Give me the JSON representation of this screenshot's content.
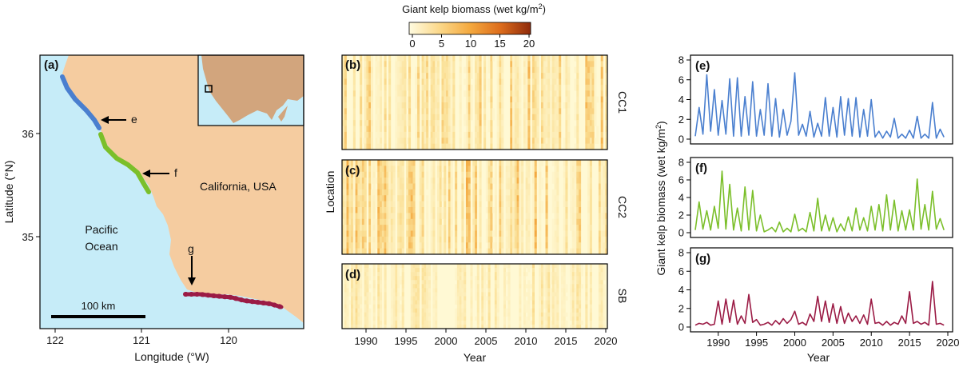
{
  "colors": {
    "ocean": "#c6ecf8",
    "land": "#f5ccA0",
    "inset_land": "#d2a57d",
    "coast_e": "#4a7fcf",
    "coast_f": "#7bbf2a",
    "coast_g": "#9b1b45",
    "heat_low": "#fff7d0",
    "heat_mid": "#f3a03a",
    "heat_high": "#8f2a0a"
  },
  "map": {
    "panel_label": "(a)",
    "xlabel": "Longitude (°W)",
    "ylabel": "Latitude (°N)",
    "xticks": [
      "122",
      "121",
      "120"
    ],
    "yticks": [
      "36",
      "35"
    ],
    "ocean_label": [
      "Pacific",
      "Ocean"
    ],
    "land_label": "California, USA",
    "scale_label": "100 km",
    "arrows": [
      "e",
      "f",
      "g"
    ]
  },
  "heatmap": {
    "colorbar_title": "Giant kelp biomass (wet kg/m²)",
    "colorbar_title_main": "Giant kelp biomass (wet kg/m",
    "colorbar_title_sup": "2",
    "colorbar_title_end": ")",
    "colorbar_ticks": [
      "0",
      "5",
      "10",
      "15",
      "20"
    ],
    "xlabel": "Year",
    "ylabel": "Location",
    "xticks": [
      "1990",
      "1995",
      "2000",
      "2005",
      "2010",
      "2015",
      "2020"
    ],
    "panels": [
      {
        "label": "(b)",
        "region": "CC1"
      },
      {
        "label": "(c)",
        "region": "CC2"
      },
      {
        "label": "(d)",
        "region": "SB"
      }
    ]
  },
  "chart_data": [
    {
      "type": "heatmap",
      "panels": [
        "CC1",
        "CC2",
        "SB"
      ],
      "x_range": [
        1987,
        2020
      ],
      "colorbar_range": [
        0,
        20
      ],
      "colorbar_label": "Giant kelp biomass (wet kg/m²)"
    },
    {
      "type": "line",
      "ylabel": "Giant kelp biomass (wet kg/m²)",
      "ylabel_main": "Giant kelp biomass (wet kg/m",
      "ylabel_sup": "2",
      "ylabel_end": ")",
      "xlabel": "Year",
      "xlim": [
        1987,
        2020
      ],
      "ylim": [
        0,
        8
      ],
      "xticks": [
        "1990",
        "1995",
        "2000",
        "2005",
        "2010",
        "2015",
        "2020"
      ],
      "yticks": [
        "0",
        "2",
        "4",
        "6",
        "8"
      ],
      "series": [
        {
          "panel": "(e)",
          "color": "#4a7fcf",
          "x": [
            1987.0,
            1987.5,
            1988.0,
            1988.5,
            1989.0,
            1989.5,
            1990.0,
            1990.5,
            1991.0,
            1991.5,
            1992.0,
            1992.5,
            1993.0,
            1993.5,
            1994.0,
            1994.5,
            1995.0,
            1995.5,
            1996.0,
            1996.5,
            1997.0,
            1997.5,
            1998.0,
            1998.5,
            1999.0,
            1999.5,
            2000.0,
            2000.5,
            2001.0,
            2001.5,
            2002.0,
            2002.5,
            2003.0,
            2003.5,
            2004.0,
            2004.5,
            2005.0,
            2005.5,
            2006.0,
            2006.5,
            2007.0,
            2007.5,
            2008.0,
            2008.5,
            2009.0,
            2009.5,
            2010.0,
            2010.5,
            2011.0,
            2011.5,
            2012.0,
            2012.5,
            2013.0,
            2013.5,
            2014.0,
            2014.5,
            2015.0,
            2015.5,
            2016.0,
            2016.5,
            2017.0,
            2017.5,
            2018.0,
            2018.5,
            2019.0,
            2019.5
          ],
          "values": [
            0.3,
            3.2,
            0.5,
            6.5,
            0.8,
            5.0,
            0.4,
            3.9,
            0.5,
            6.1,
            0.3,
            6.2,
            0.3,
            4.3,
            0.4,
            5.8,
            0.3,
            3.0,
            0.4,
            5.6,
            0.3,
            4.1,
            0.2,
            3.0,
            0.4,
            1.8,
            6.7,
            0.4,
            1.5,
            0.3,
            2.8,
            0.2,
            1.6,
            0.3,
            4.2,
            0.3,
            3.2,
            0.2,
            4.3,
            0.4,
            4.1,
            0.3,
            4.2,
            0.2,
            3.0,
            0.3,
            4.0,
            0.2,
            0.8,
            0.1,
            0.8,
            0.2,
            2.1,
            0.1,
            0.5,
            0.1,
            0.9,
            0.1,
            2.3,
            0.1,
            0.5,
            0.1,
            3.7,
            0.1,
            1.0,
            0.2
          ]
        },
        {
          "panel": "(f)",
          "color": "#7bbf2a",
          "x": [
            1987.0,
            1987.5,
            1988.0,
            1988.5,
            1989.0,
            1989.5,
            1990.0,
            1990.5,
            1991.0,
            1991.5,
            1992.0,
            1992.5,
            1993.0,
            1993.5,
            1994.0,
            1994.5,
            1995.0,
            1995.5,
            1996.0,
            1996.5,
            1997.0,
            1997.5,
            1998.0,
            1998.5,
            1999.0,
            1999.5,
            2000.0,
            2000.5,
            2001.0,
            2001.5,
            2002.0,
            2002.5,
            2003.0,
            2003.5,
            2004.0,
            2004.5,
            2005.0,
            2005.5,
            2006.0,
            2006.5,
            2007.0,
            2007.5,
            2008.0,
            2008.5,
            2009.0,
            2009.5,
            2010.0,
            2010.5,
            2011.0,
            2011.5,
            2012.0,
            2012.5,
            2013.0,
            2013.5,
            2014.0,
            2014.5,
            2015.0,
            2015.5,
            2016.0,
            2016.5,
            2017.0,
            2017.5,
            2018.0,
            2018.5,
            2019.0,
            2019.5
          ],
          "values": [
            0.3,
            3.5,
            0.4,
            2.5,
            0.3,
            3.0,
            0.5,
            7.0,
            0.4,
            5.5,
            0.3,
            2.8,
            0.2,
            5.2,
            0.3,
            4.8,
            0.2,
            2.0,
            0.1,
            0.3,
            0.6,
            0.1,
            1.2,
            0.1,
            0.5,
            0.1,
            2.1,
            0.2,
            0.5,
            0.1,
            2.3,
            0.2,
            3.9,
            0.2,
            2.0,
            0.2,
            1.7,
            0.1,
            1.0,
            0.2,
            1.8,
            0.2,
            2.8,
            0.3,
            1.7,
            0.2,
            3.0,
            0.3,
            3.2,
            0.2,
            4.3,
            0.3,
            3.7,
            0.2,
            2.5,
            0.3,
            2.6,
            0.3,
            6.1,
            0.4,
            3.2,
            0.3,
            4.7,
            0.4,
            1.6,
            0.3
          ]
        },
        {
          "panel": "(g)",
          "color": "#9b1b45",
          "x": [
            1987.0,
            1987.5,
            1988.0,
            1988.5,
            1989.0,
            1989.5,
            1990.0,
            1990.5,
            1991.0,
            1991.5,
            1992.0,
            1992.5,
            1993.0,
            1993.5,
            1994.0,
            1994.5,
            1995.0,
            1995.5,
            1996.0,
            1996.5,
            1997.0,
            1997.5,
            1998.0,
            1998.5,
            1999.0,
            1999.5,
            2000.0,
            2000.5,
            2001.0,
            2001.5,
            2002.0,
            2002.5,
            2003.0,
            2003.5,
            2004.0,
            2004.5,
            2005.0,
            2005.5,
            2006.0,
            2006.5,
            2007.0,
            2007.5,
            2008.0,
            2008.5,
            2009.0,
            2009.5,
            2010.0,
            2010.5,
            2011.0,
            2011.5,
            2012.0,
            2012.5,
            2013.0,
            2013.5,
            2014.0,
            2014.5,
            2015.0,
            2015.5,
            2016.0,
            2016.5,
            2017.0,
            2017.5,
            2018.0,
            2018.5,
            2019.0,
            2019.5
          ],
          "values": [
            0.2,
            0.4,
            0.3,
            0.5,
            0.2,
            0.3,
            2.8,
            0.3,
            3.0,
            0.5,
            2.9,
            0.3,
            1.2,
            0.4,
            3.5,
            0.5,
            0.8,
            0.2,
            0.3,
            0.5,
            0.2,
            0.7,
            0.3,
            0.9,
            0.4,
            0.8,
            1.7,
            0.3,
            0.5,
            0.2,
            1.4,
            0.6,
            3.3,
            0.6,
            2.8,
            0.5,
            2.5,
            0.4,
            2.2,
            0.4,
            1.5,
            0.6,
            1.2,
            0.4,
            1.3,
            0.3,
            3.0,
            0.4,
            0.5,
            0.2,
            0.6,
            0.2,
            0.5,
            0.3,
            1.2,
            0.4,
            3.8,
            0.4,
            0.6,
            0.3,
            0.5,
            0.2,
            4.9,
            0.3,
            0.4,
            0.2
          ]
        }
      ]
    }
  ]
}
